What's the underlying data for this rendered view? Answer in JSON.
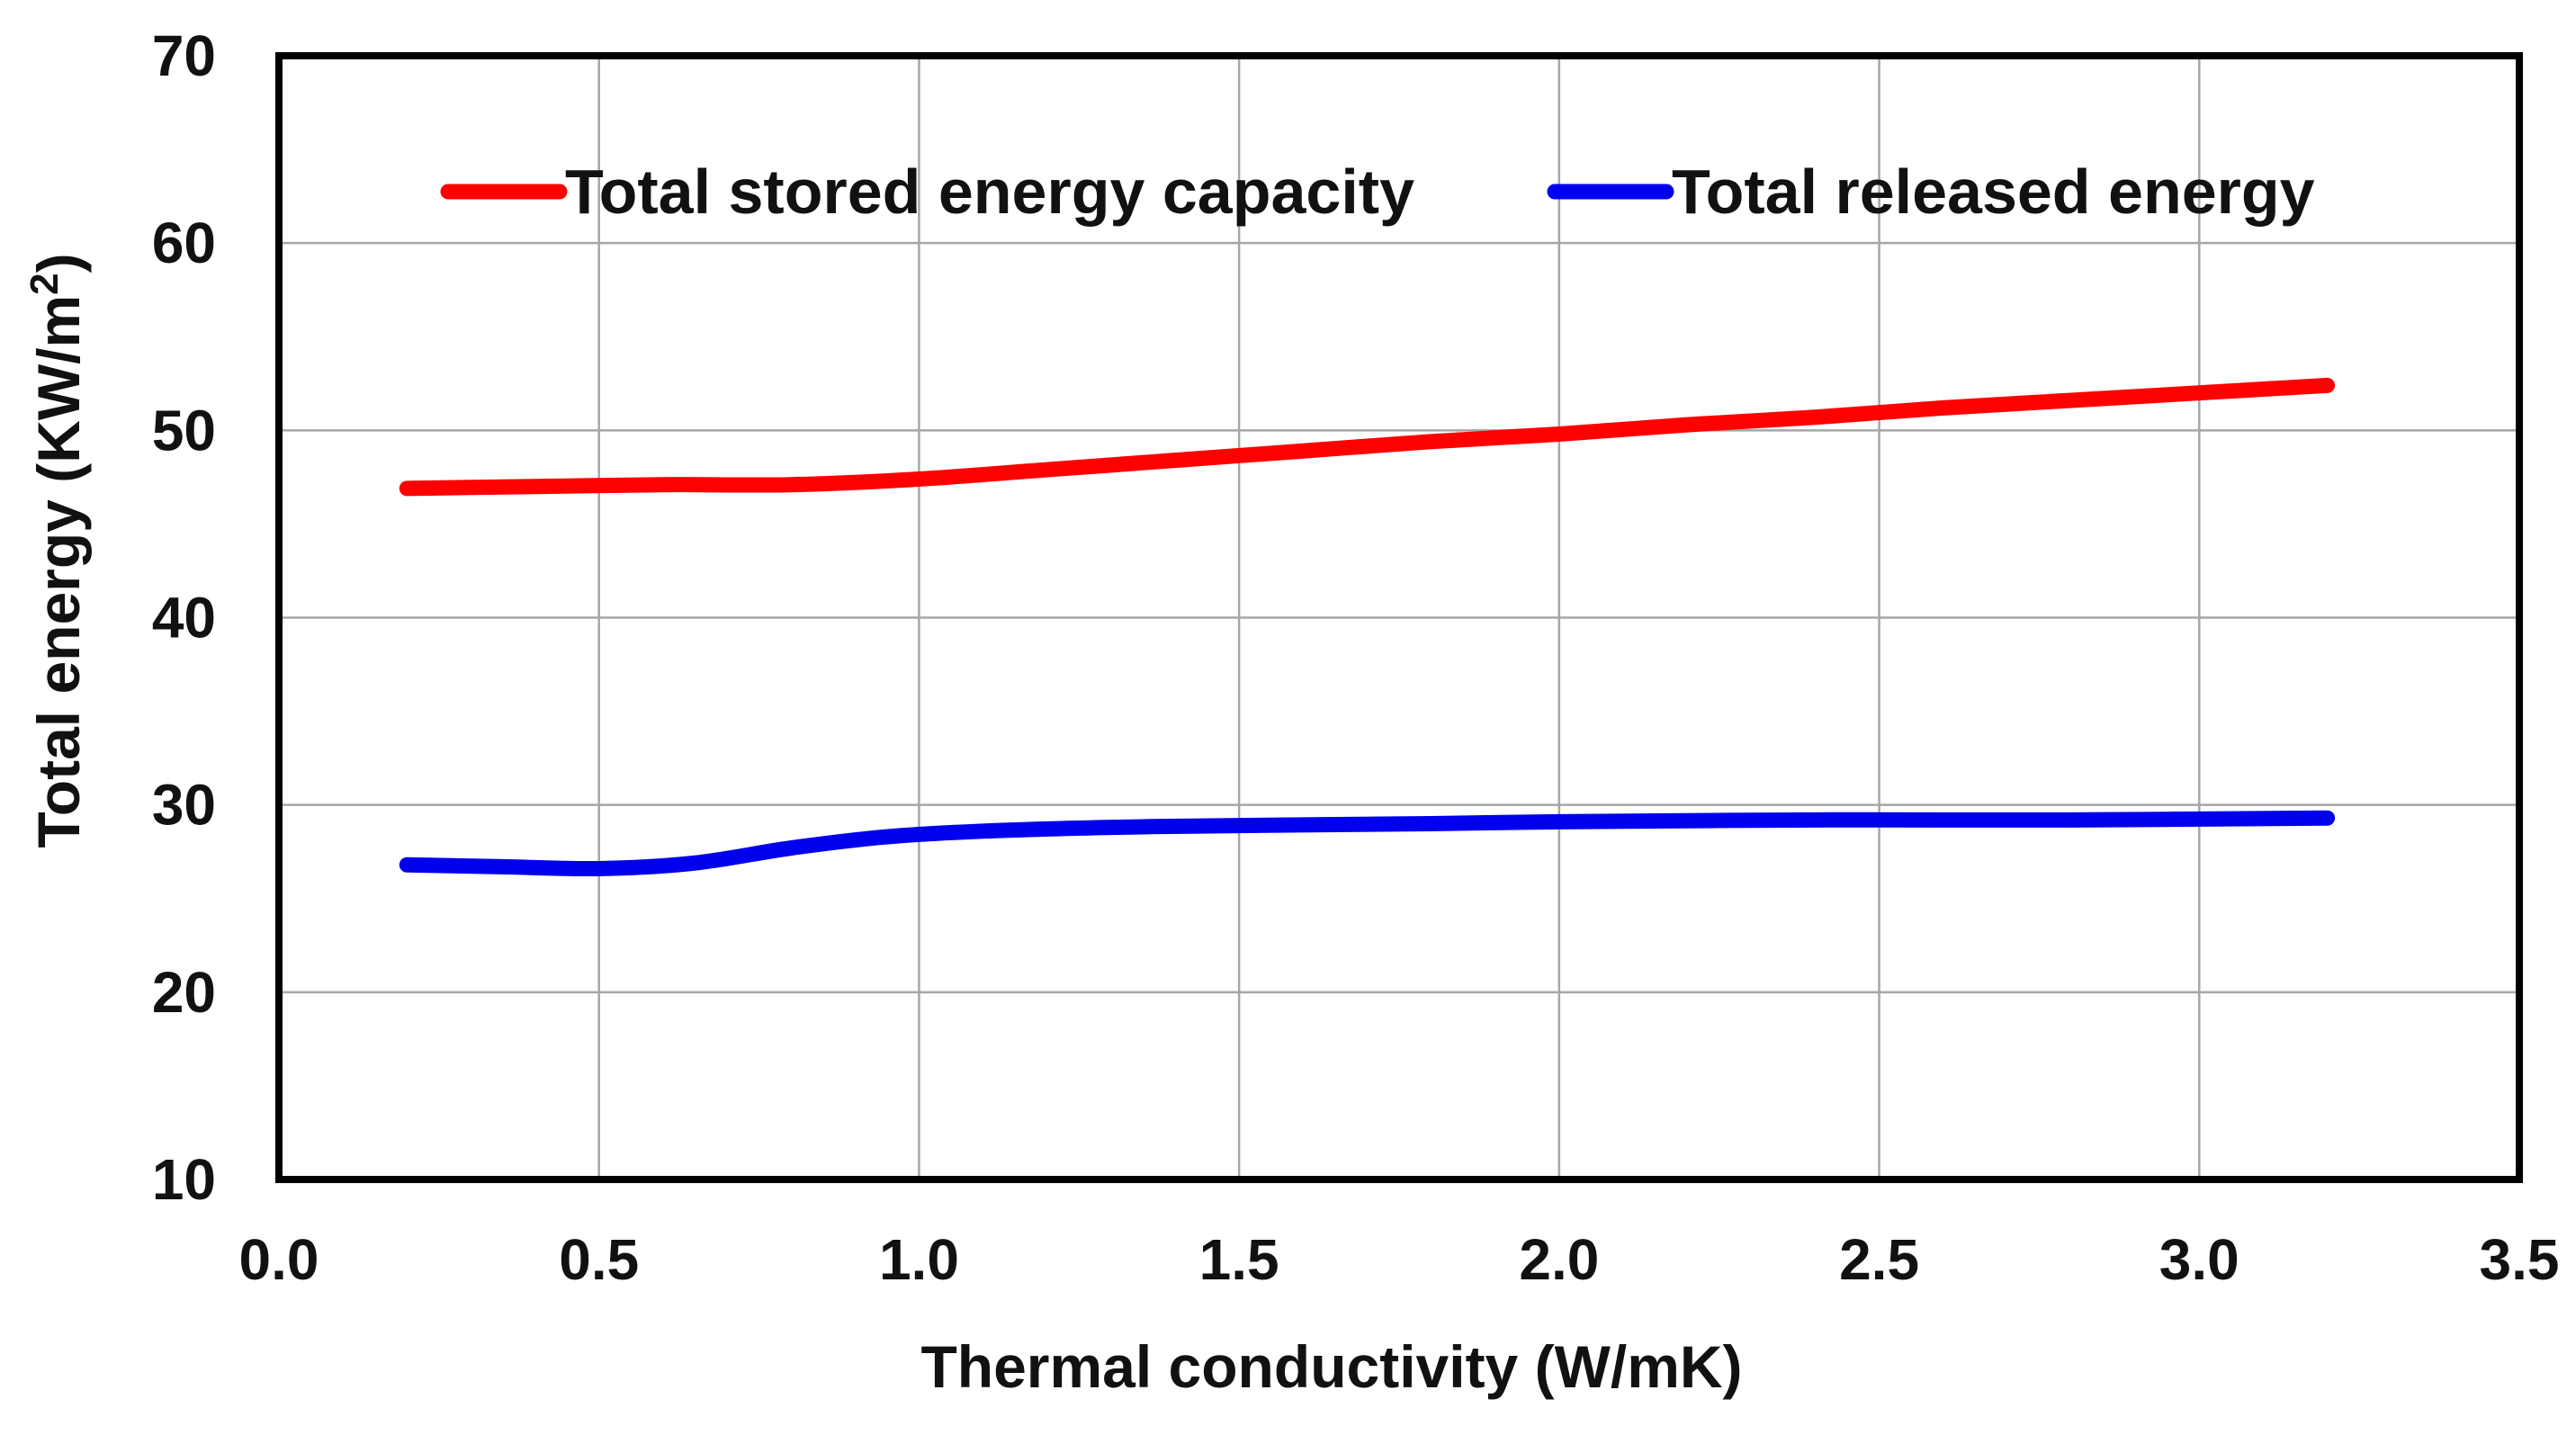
{
  "chart_data": {
    "type": "line",
    "title": "",
    "xlabel": "Thermal conductivity (W/mK)",
    "ylabel": {
      "main": "Total energy (KW/m",
      "superscript": "2",
      "close": ")"
    },
    "xlim": [
      0,
      3.5
    ],
    "ylim": [
      10,
      70
    ],
    "xticks": [
      0,
      0.5,
      1,
      1.5,
      2,
      2.5,
      3,
      3.5
    ],
    "xtick_labels": [
      "0.0",
      "0.5",
      "1.0",
      "1.5",
      "2.0",
      "2.5",
      "3.0",
      "3.5"
    ],
    "yticks": [
      10,
      20,
      30,
      40,
      50,
      60,
      70
    ],
    "ytick_labels": [
      "10",
      "20",
      "30",
      "40",
      "50",
      "60",
      "70"
    ],
    "grid": true,
    "legend_position": "top",
    "series": [
      {
        "name": "Total stored energy capacity",
        "color": "#ff0000",
        "x": [
          0.2,
          0.4,
          0.6,
          0.8,
          1.0,
          1.2,
          1.4,
          1.6,
          1.8,
          2.0,
          2.2,
          2.4,
          2.6,
          2.8,
          3.0,
          3.2
        ],
        "y": [
          46.9,
          47.0,
          47.1,
          47.1,
          47.4,
          47.9,
          48.4,
          48.9,
          49.4,
          49.8,
          50.3,
          50.7,
          51.2,
          51.6,
          52.0,
          52.4
        ]
      },
      {
        "name": "Total released energy",
        "color": "#0000ee",
        "x": [
          0.2,
          0.35,
          0.5,
          0.65,
          0.8,
          0.95,
          1.1,
          1.3,
          1.5,
          1.8,
          2.0,
          2.4,
          2.8,
          3.2
        ],
        "y": [
          26.8,
          26.7,
          26.6,
          26.9,
          27.7,
          28.3,
          28.6,
          28.8,
          28.9,
          29.0,
          29.1,
          29.2,
          29.2,
          29.3
        ]
      }
    ]
  }
}
